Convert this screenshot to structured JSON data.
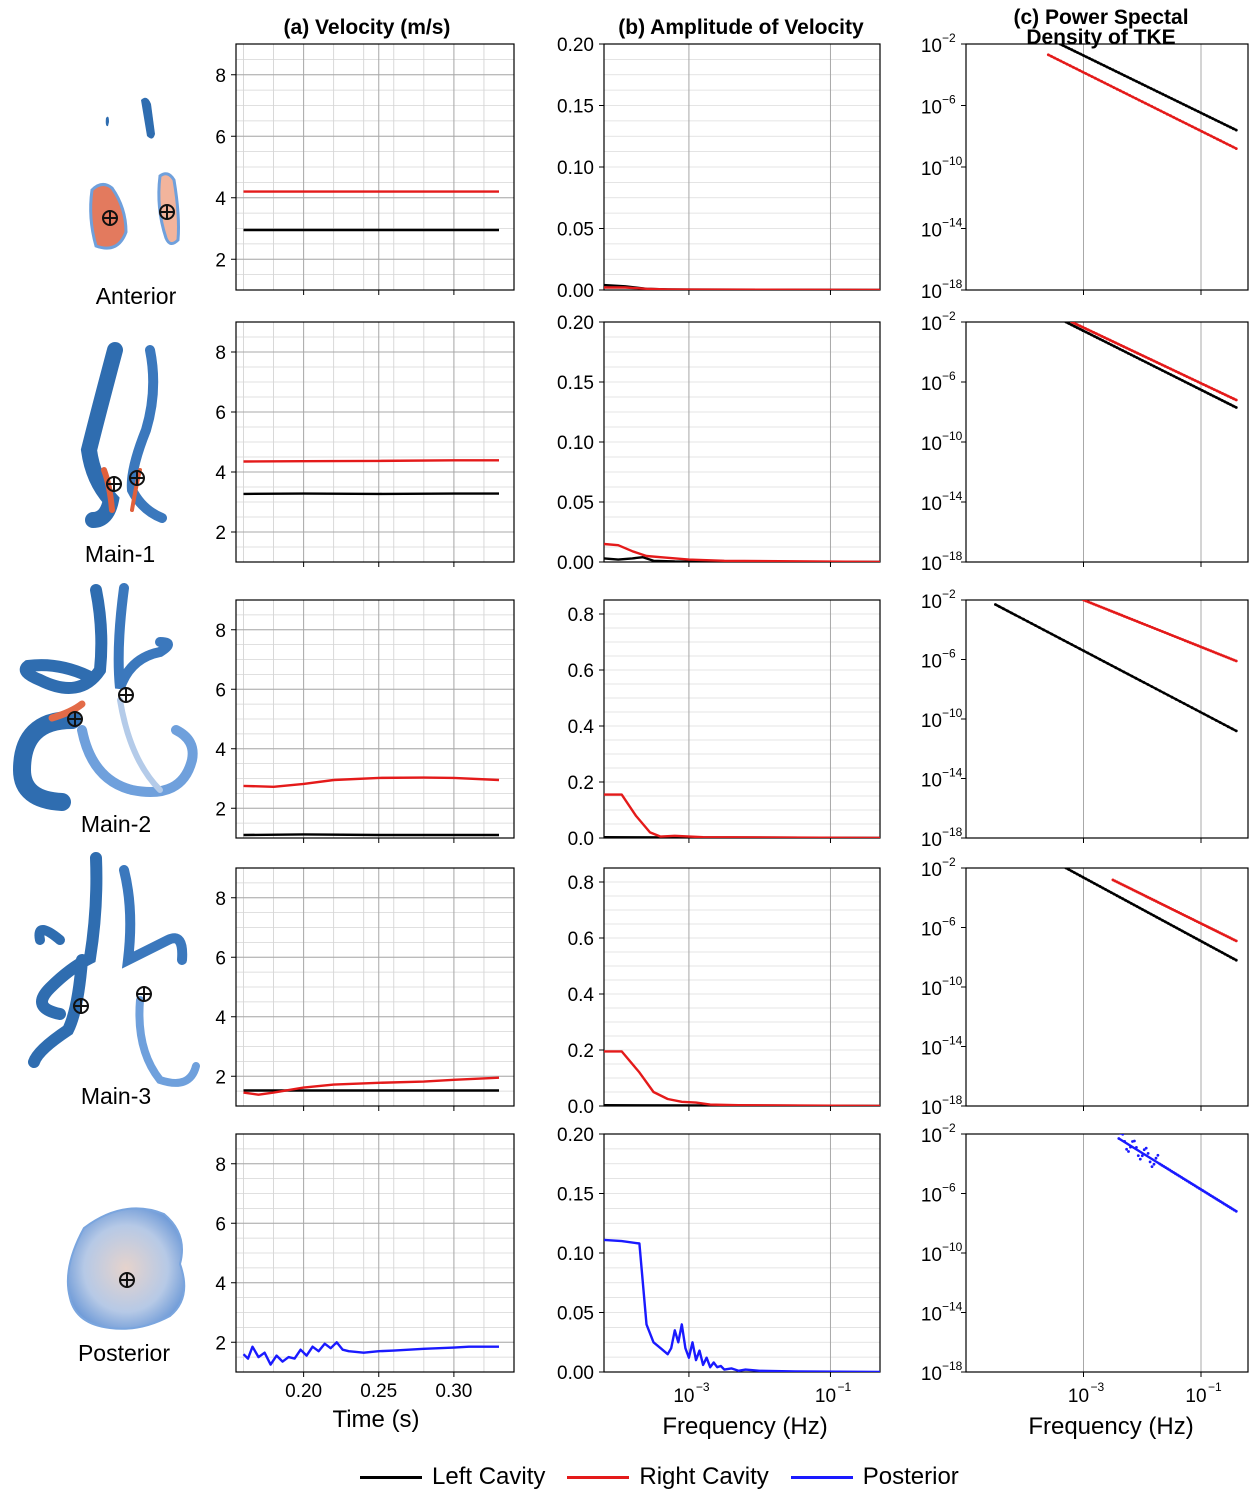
{
  "column_titles": {
    "a": "(a) Velocity (m/s)",
    "b": "(b) Amplitude of Velocity",
    "c1": "(c) Power Spectal",
    "c2": "Density of TKE"
  },
  "row_labels": [
    "Anterior",
    "Main-1",
    "Main-2",
    "Main-3",
    "Posterior"
  ],
  "x_labels": {
    "a": "Time (s)",
    "b": "Frequency (Hz)",
    "c": "Frequency (Hz)"
  },
  "legend": [
    {
      "label": "Left Cavity",
      "color": "#000000"
    },
    {
      "label": "Right Cavity",
      "color": "#e41a1a"
    },
    {
      "label": "Posterior",
      "color": "#1a1aff"
    }
  ],
  "chart_data": [
    {
      "type": "line",
      "column": "a",
      "row": "Anterior",
      "x_ticks": [
        0.2,
        0.25,
        0.3
      ],
      "xlim": [
        0.155,
        0.34
      ],
      "ylim": [
        1,
        9
      ],
      "y_ticks": [
        2,
        4,
        6,
        8
      ],
      "series": [
        {
          "name": "Left Cavity",
          "color": "#000000",
          "x": [
            0.16,
            0.33
          ],
          "y": [
            2.95,
            2.95
          ]
        },
        {
          "name": "Right Cavity",
          "color": "#e41a1a",
          "x": [
            0.16,
            0.33
          ],
          "y": [
            4.2,
            4.2
          ]
        }
      ]
    },
    {
      "type": "line",
      "column": "a",
      "row": "Main-1",
      "x_ticks": [
        0.2,
        0.25,
        0.3
      ],
      "xlim": [
        0.155,
        0.34
      ],
      "ylim": [
        1,
        9
      ],
      "y_ticks": [
        2,
        4,
        6,
        8
      ],
      "series": [
        {
          "name": "Left Cavity",
          "color": "#000000",
          "x": [
            0.16,
            0.2,
            0.25,
            0.3,
            0.33
          ],
          "y": [
            3.27,
            3.28,
            3.27,
            3.28,
            3.28
          ]
        },
        {
          "name": "Right Cavity",
          "color": "#e41a1a",
          "x": [
            0.16,
            0.2,
            0.25,
            0.3,
            0.33
          ],
          "y": [
            4.35,
            4.36,
            4.37,
            4.39,
            4.39
          ]
        }
      ]
    },
    {
      "type": "line",
      "column": "a",
      "row": "Main-2",
      "x_ticks": [
        0.2,
        0.25,
        0.3
      ],
      "xlim": [
        0.155,
        0.34
      ],
      "ylim": [
        1,
        9
      ],
      "y_ticks": [
        2,
        4,
        6,
        8
      ],
      "series": [
        {
          "name": "Left Cavity",
          "color": "#000000",
          "x": [
            0.16,
            0.2,
            0.25,
            0.3,
            0.33
          ],
          "y": [
            1.1,
            1.12,
            1.1,
            1.1,
            1.1
          ]
        },
        {
          "name": "Right Cavity",
          "color": "#e41a1a",
          "x": [
            0.16,
            0.18,
            0.2,
            0.22,
            0.25,
            0.28,
            0.3,
            0.33
          ],
          "y": [
            2.75,
            2.72,
            2.82,
            2.95,
            3.02,
            3.03,
            3.02,
            2.95
          ]
        }
      ]
    },
    {
      "type": "line",
      "column": "a",
      "row": "Main-3",
      "x_ticks": [
        0.2,
        0.25,
        0.3
      ],
      "xlim": [
        0.155,
        0.34
      ],
      "ylim": [
        1,
        9
      ],
      "y_ticks": [
        2,
        4,
        6,
        8
      ],
      "series": [
        {
          "name": "Left Cavity",
          "color": "#000000",
          "x": [
            0.16,
            0.33
          ],
          "y": [
            1.52,
            1.52
          ]
        },
        {
          "name": "Right Cavity",
          "color": "#e41a1a",
          "x": [
            0.16,
            0.17,
            0.18,
            0.2,
            0.22,
            0.25,
            0.28,
            0.3,
            0.33
          ],
          "y": [
            1.45,
            1.38,
            1.45,
            1.62,
            1.72,
            1.78,
            1.82,
            1.88,
            1.95
          ]
        }
      ]
    },
    {
      "type": "line",
      "column": "a",
      "row": "Posterior",
      "x_ticks": [
        0.2,
        0.25,
        0.3
      ],
      "xlim": [
        0.155,
        0.34
      ],
      "ylim": [
        1,
        9
      ],
      "y_ticks": [
        2,
        4,
        6,
        8
      ],
      "series": [
        {
          "name": "Posterior",
          "color": "#1a1aff",
          "x": [
            0.16,
            0.163,
            0.166,
            0.17,
            0.174,
            0.178,
            0.182,
            0.186,
            0.19,
            0.194,
            0.198,
            0.202,
            0.206,
            0.21,
            0.214,
            0.218,
            0.222,
            0.226,
            0.23,
            0.24,
            0.25,
            0.26,
            0.27,
            0.28,
            0.29,
            0.3,
            0.31,
            0.32,
            0.33
          ],
          "y": [
            1.6,
            1.45,
            1.85,
            1.5,
            1.65,
            1.25,
            1.55,
            1.35,
            1.5,
            1.45,
            1.75,
            1.55,
            1.85,
            1.7,
            1.95,
            1.8,
            2.0,
            1.75,
            1.7,
            1.65,
            1.7,
            1.72,
            1.75,
            1.78,
            1.8,
            1.82,
            1.85,
            1.85,
            1.85
          ]
        }
      ]
    },
    {
      "type": "line",
      "column": "b",
      "row": "Anterior",
      "x_scale": "log",
      "xlim_log10": [
        -4.2,
        -0.3
      ],
      "x_ticks_log10": [
        -3,
        -1
      ],
      "ylim": [
        0,
        0.2
      ],
      "y_ticks": [
        0.0,
        0.05,
        0.1,
        0.15,
        0.2
      ],
      "series": [
        {
          "name": "Left Cavity",
          "color": "#000000",
          "logx": [
            -4.2,
            -3.9,
            -3.6,
            -3.3,
            -3.0,
            -0.3
          ],
          "y": [
            0.004,
            0.003,
            0.001,
            0.0005,
            0.0003,
            0.0
          ]
        },
        {
          "name": "Right Cavity",
          "color": "#e41a1a",
          "logx": [
            -4.2,
            -3.9,
            -3.6,
            -3.3,
            -3.0,
            -0.3
          ],
          "y": [
            0.002,
            0.002,
            0.001,
            0.0005,
            0.0003,
            0.0
          ]
        }
      ]
    },
    {
      "type": "line",
      "column": "b",
      "row": "Main-1",
      "x_scale": "log",
      "xlim_log10": [
        -4.2,
        -0.3
      ],
      "x_ticks_log10": [
        -3,
        -1
      ],
      "ylim": [
        0,
        0.2
      ],
      "y_ticks": [
        0.0,
        0.05,
        0.1,
        0.15,
        0.2
      ],
      "series": [
        {
          "name": "Left Cavity",
          "color": "#000000",
          "logx": [
            -4.2,
            -4.0,
            -3.8,
            -3.65,
            -3.5,
            -3.2,
            -0.3
          ],
          "y": [
            0.003,
            0.002,
            0.003,
            0.004,
            0.001,
            0.0005,
            0.0
          ]
        },
        {
          "name": "Right Cavity",
          "color": "#e41a1a",
          "logx": [
            -4.2,
            -4.0,
            -3.8,
            -3.6,
            -3.4,
            -3.0,
            -2.5,
            -0.3
          ],
          "y": [
            0.015,
            0.014,
            0.009,
            0.005,
            0.004,
            0.002,
            0.001,
            0.0
          ]
        }
      ]
    },
    {
      "type": "line",
      "column": "b",
      "row": "Main-2",
      "x_scale": "log",
      "xlim_log10": [
        -4.2,
        -0.3
      ],
      "x_ticks_log10": [
        -3,
        -1
      ],
      "ylim": [
        0,
        0.85
      ],
      "y_ticks": [
        0.0,
        0.2,
        0.4,
        0.6,
        0.8
      ],
      "series": [
        {
          "name": "Left Cavity",
          "color": "#000000",
          "logx": [
            -4.2,
            -3.0,
            -0.3
          ],
          "y": [
            0.003,
            0.002,
            0.0
          ]
        },
        {
          "name": "Right Cavity",
          "color": "#e41a1a",
          "logx": [
            -4.2,
            -3.95,
            -3.75,
            -3.55,
            -3.4,
            -3.2,
            -2.8,
            -0.3
          ],
          "y": [
            0.155,
            0.155,
            0.08,
            0.02,
            0.005,
            0.008,
            0.003,
            0.0
          ]
        }
      ]
    },
    {
      "type": "line",
      "column": "b",
      "row": "Main-3",
      "x_scale": "log",
      "xlim_log10": [
        -4.2,
        -0.3
      ],
      "x_ticks_log10": [
        -3,
        -1
      ],
      "ylim": [
        0,
        0.85
      ],
      "y_ticks": [
        0.0,
        0.2,
        0.4,
        0.6,
        0.8
      ],
      "series": [
        {
          "name": "Left Cavity",
          "color": "#000000",
          "logx": [
            -4.2,
            -3.0,
            -0.3
          ],
          "y": [
            0.003,
            0.002,
            0.0
          ]
        },
        {
          "name": "Right Cavity",
          "color": "#e41a1a",
          "logx": [
            -4.2,
            -3.95,
            -3.7,
            -3.5,
            -3.3,
            -3.1,
            -2.9,
            -2.7,
            -2.3,
            -0.3
          ],
          "y": [
            0.195,
            0.195,
            0.12,
            0.05,
            0.025,
            0.015,
            0.012,
            0.005,
            0.003,
            0.0
          ]
        }
      ]
    },
    {
      "type": "line",
      "column": "b",
      "row": "Posterior",
      "x_scale": "log",
      "xlim_log10": [
        -4.2,
        -0.3
      ],
      "x_ticks_log10": [
        -3,
        -1
      ],
      "ylim": [
        0,
        0.2
      ],
      "y_ticks": [
        0.0,
        0.05,
        0.1,
        0.15,
        0.2
      ],
      "series": [
        {
          "name": "Posterior",
          "color": "#1a1aff",
          "logx": [
            -4.2,
            -3.95,
            -3.7,
            -3.6,
            -3.5,
            -3.4,
            -3.3,
            -3.25,
            -3.2,
            -3.15,
            -3.1,
            -3.05,
            -3.0,
            -2.95,
            -2.9,
            -2.85,
            -2.8,
            -2.75,
            -2.7,
            -2.65,
            -2.6,
            -2.55,
            -2.5,
            -2.4,
            -2.3,
            -2.2,
            -2.0,
            -1.5,
            -0.3
          ],
          "y": [
            0.111,
            0.11,
            0.108,
            0.04,
            0.025,
            0.02,
            0.015,
            0.02,
            0.035,
            0.025,
            0.04,
            0.02,
            0.012,
            0.025,
            0.01,
            0.018,
            0.006,
            0.012,
            0.004,
            0.008,
            0.004,
            0.005,
            0.002,
            0.003,
            0.001,
            0.002,
            0.001,
            0.0005,
            0.0
          ]
        }
      ]
    },
    {
      "type": "scatter",
      "column": "c",
      "row": "Anterior",
      "x_scale": "log",
      "y_scale": "log",
      "xlim_log10": [
        -5.0,
        -0.2
      ],
      "x_ticks_log10": [
        -3,
        -1
      ],
      "ylim_log10": [
        -18,
        -2
      ],
      "y_ticks_log10": [
        -2,
        -6,
        -10,
        -14,
        -18
      ],
      "series": [
        {
          "name": "Left Cavity",
          "color": "#000000",
          "logx": [
            -3.4,
            -0.4
          ],
          "logy": [
            -2.0,
            -7.6
          ]
        },
        {
          "name": "Right Cavity",
          "color": "#e41a1a",
          "logx": [
            -3.6,
            -0.4
          ],
          "logy": [
            -2.7,
            -8.8
          ]
        }
      ]
    },
    {
      "type": "scatter",
      "column": "c",
      "row": "Main-1",
      "x_scale": "log",
      "y_scale": "log",
      "xlim_log10": [
        -5.0,
        -0.2
      ],
      "x_ticks_log10": [
        -3,
        -1
      ],
      "ylim_log10": [
        -18,
        -2
      ],
      "y_ticks_log10": [
        -2,
        -6,
        -10,
        -14,
        -18
      ],
      "series": [
        {
          "name": "Left Cavity",
          "color": "#000000",
          "logx": [
            -3.3,
            -0.4
          ],
          "logy": [
            -2.0,
            -7.7
          ]
        },
        {
          "name": "Right Cavity",
          "color": "#e41a1a",
          "logx": [
            -3.2,
            -0.4
          ],
          "logy": [
            -2.0,
            -7.2
          ]
        }
      ]
    },
    {
      "type": "scatter",
      "column": "c",
      "row": "Main-2",
      "x_scale": "log",
      "y_scale": "log",
      "xlim_log10": [
        -5.0,
        -0.2
      ],
      "x_ticks_log10": [
        -3,
        -1
      ],
      "ylim_log10": [
        -18,
        -2
      ],
      "y_ticks_log10": [
        -2,
        -6,
        -10,
        -14,
        -18
      ],
      "series": [
        {
          "name": "Left Cavity",
          "color": "#000000",
          "logx": [
            -4.5,
            -0.4
          ],
          "logy": [
            -2.3,
            -10.8
          ]
        },
        {
          "name": "Right Cavity",
          "color": "#e41a1a",
          "logx": [
            -3.0,
            -0.4
          ],
          "logy": [
            -2.0,
            -6.1
          ]
        }
      ]
    },
    {
      "type": "scatter",
      "column": "c",
      "row": "Main-3",
      "x_scale": "log",
      "y_scale": "log",
      "xlim_log10": [
        -5.0,
        -0.2
      ],
      "x_ticks_log10": [
        -3,
        -1
      ],
      "ylim_log10": [
        -18,
        -2
      ],
      "y_ticks_log10": [
        -2,
        -6,
        -10,
        -14,
        -18
      ],
      "series": [
        {
          "name": "Left Cavity",
          "color": "#000000",
          "logx": [
            -3.3,
            -0.4
          ],
          "logy": [
            -2.0,
            -8.2
          ]
        },
        {
          "name": "Right Cavity",
          "color": "#e41a1a",
          "logx": [
            -2.5,
            -0.4
          ],
          "logy": [
            -2.8,
            -6.9
          ]
        }
      ]
    },
    {
      "type": "scatter",
      "column": "c",
      "row": "Posterior",
      "x_scale": "log",
      "y_scale": "log",
      "xlim_log10": [
        -5.0,
        -0.2
      ],
      "x_ticks_log10": [
        -3,
        -1
      ],
      "ylim_log10": [
        -18,
        -2
      ],
      "y_ticks_log10": [
        -2,
        -6,
        -10,
        -14,
        -18
      ],
      "series": [
        {
          "name": "Posterior",
          "color": "#1a1aff",
          "logx": [
            -2.4,
            -0.4
          ],
          "logy": [
            -2.3,
            -7.2
          ]
        }
      ]
    }
  ]
}
